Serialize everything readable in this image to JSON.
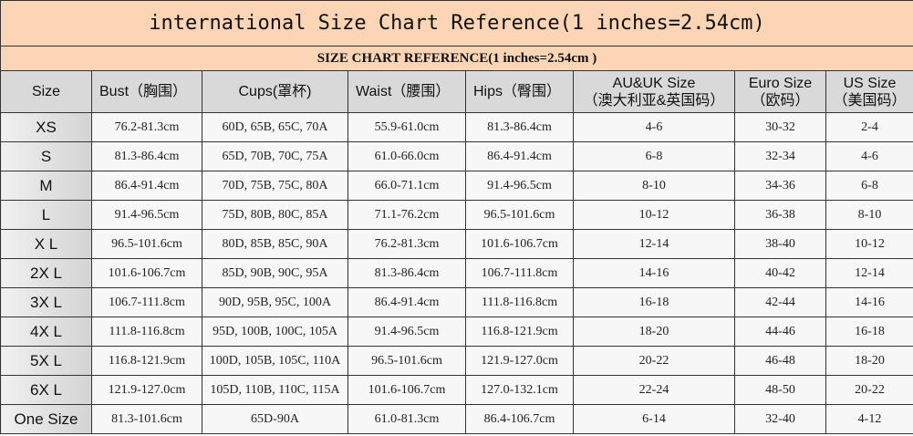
{
  "title": "international Size Chart Reference(1 inches=2.54cm)",
  "subtitle": "SIZE CHART REFERENCE(1 inches=2.54cm )",
  "headers": [
    {
      "line1": "Size",
      "line2": ""
    },
    {
      "line1": "Bust（胸围）",
      "line2": ""
    },
    {
      "line1": "Cups(罩杯)",
      "line2": ""
    },
    {
      "line1": "Waist（腰围）",
      "line2": ""
    },
    {
      "line1": "Hips（臀围）",
      "line2": ""
    },
    {
      "line1": "AU&UK Size",
      "line2": "（澳大利亚&英国码）"
    },
    {
      "line1": "Euro Size",
      "line2": "（欧码）"
    },
    {
      "line1": "US Size",
      "line2": "（美国码）"
    }
  ],
  "rows": [
    [
      "XS",
      "76.2-81.3cm",
      "60D, 65B, 65C, 70A",
      "55.9-61.0cm",
      "81.3-86.4cm",
      "4-6",
      "30-32",
      "2-4"
    ],
    [
      "S",
      "81.3-86.4cm",
      "65D, 70B, 70C, 75A",
      "61.0-66.0cm",
      "86.4-91.4cm",
      "6-8",
      "32-34",
      "4-6"
    ],
    [
      "M",
      "86.4-91.4cm",
      "70D, 75B, 75C, 80A",
      "66.0-71.1cm",
      "91.4-96.5cm",
      "8-10",
      "34-36",
      "6-8"
    ],
    [
      "L",
      "91.4-96.5cm",
      "75D, 80B, 80C, 85A",
      "71.1-76.2cm",
      "96.5-101.6cm",
      "10-12",
      "36-38",
      "8-10"
    ],
    [
      "X L",
      "96.5-101.6cm",
      "80D, 85B, 85C, 90A",
      "76.2-81.3cm",
      "101.6-106.7cm",
      "12-14",
      "38-40",
      "10-12"
    ],
    [
      "2X L",
      "101.6-106.7cm",
      "85D, 90B, 90C, 95A",
      "81.3-86.4cm",
      "106.7-111.8cm",
      "14-16",
      "40-42",
      "12-14"
    ],
    [
      "3X L",
      "106.7-111.8cm",
      "90D, 95B, 95C, 100A",
      "86.4-91.4cm",
      "111.8-116.8cm",
      "16-18",
      "42-44",
      "14-16"
    ],
    [
      "4X L",
      "111.8-116.8cm",
      "95D, 100B, 100C, 105A",
      "91.4-96.5cm",
      "116.8-121.9cm",
      "18-20",
      "44-46",
      "16-18"
    ],
    [
      "5X L",
      "116.8-121.9cm",
      "100D, 105B, 105C, 110A",
      "96.5-101.6cm",
      "121.9-127.0cm",
      "20-22",
      "46-48",
      "18-20"
    ],
    [
      "6X L",
      "121.9-127.0cm",
      "105D, 110B, 110C, 115A",
      "101.6-106.7cm",
      "127.0-132.1cm",
      "22-24",
      "48-50",
      "20-22"
    ],
    [
      "One Size",
      "81.3-101.6cm",
      "65D-90A",
      "61.0-81.3cm",
      "86.4-106.7cm",
      "6-14",
      "32-40",
      "4-12"
    ]
  ],
  "colors": {
    "title_bg": "#fcd5b5",
    "header_bg": "#d9d9d9"
  }
}
